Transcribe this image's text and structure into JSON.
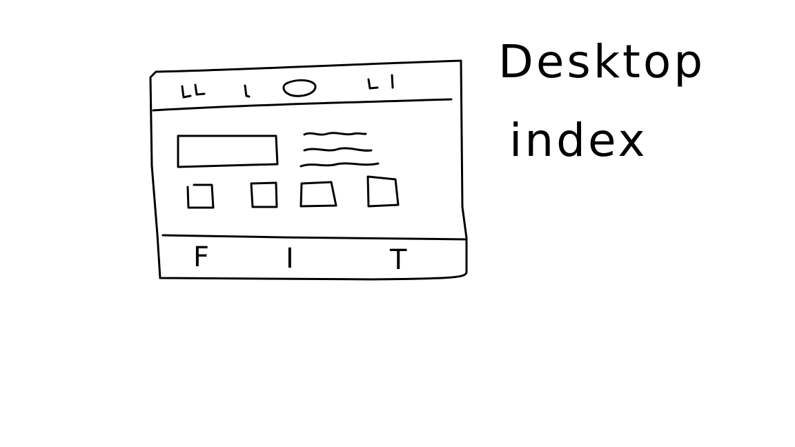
{
  "annotation": {
    "line1": "Desktop",
    "line2": "index"
  },
  "wireframe": {
    "header_nav_marks": [
      "ււ",
      "ι",
      "ι"
    ],
    "footer_labels": [
      "F",
      "I",
      "T"
    ],
    "card_count": 4,
    "text_line_count": 3
  },
  "colors": {
    "ink": "#000000",
    "paper": "#ffffff"
  }
}
